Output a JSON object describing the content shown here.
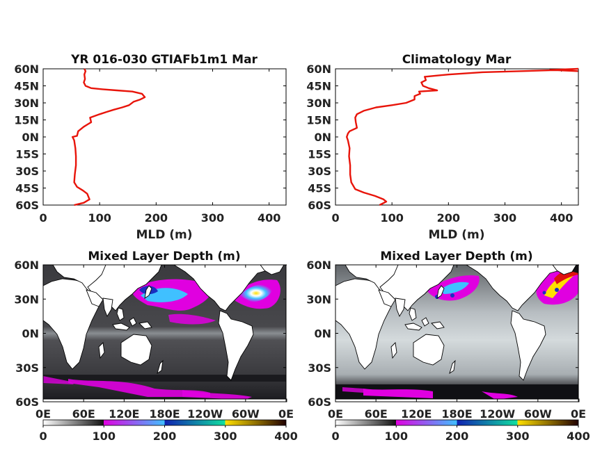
{
  "chart_data": [
    {
      "type": "line",
      "title": "YR 016-030 GTIAFb1m1 Mar",
      "xlabel": "MLD (m)",
      "ylabel": "",
      "xlim": [
        0,
        430
      ],
      "ylim": [
        -60,
        60
      ],
      "x_ticks": [
        "0",
        "100",
        "200",
        "300",
        "400"
      ],
      "y_ticks": [
        "60N",
        "45N",
        "30N",
        "15N",
        "0N",
        "15S",
        "30S",
        "45S",
        "60S"
      ],
      "series": [
        {
          "points": [
            [
              55,
              -60
            ],
            [
              72,
              -58
            ],
            [
              82,
              -55
            ],
            [
              78,
              -50
            ],
            [
              70,
              -47
            ],
            [
              60,
              -44
            ],
            [
              55,
              -40
            ],
            [
              56,
              -33
            ],
            [
              58,
              -25
            ],
            [
              58,
              -17
            ],
            [
              57,
              -10
            ],
            [
              55,
              -3
            ],
            [
              52,
              0
            ],
            [
              60,
              1
            ],
            [
              62,
              5
            ],
            [
              72,
              9
            ],
            [
              85,
              13
            ],
            [
              83,
              17
            ],
            [
              100,
              20
            ],
            [
              112,
              22
            ],
            [
              125,
              24
            ],
            [
              140,
              26
            ],
            [
              152,
              28
            ],
            [
              160,
              31
            ],
            [
              172,
              33
            ],
            [
              180,
              35
            ],
            [
              175,
              38
            ],
            [
              158,
              40
            ],
            [
              130,
              41
            ],
            [
              105,
              42
            ],
            [
              85,
              43
            ],
            [
              75,
              45
            ],
            [
              72,
              48
            ],
            [
              74,
              51
            ],
            [
              73,
              55
            ],
            [
              75,
              58
            ],
            [
              73,
              60
            ]
          ]
        }
      ]
    },
    {
      "type": "line",
      "title": "Climatology Mar",
      "xlabel": "MLD (m)",
      "ylabel": "",
      "xlim": [
        0,
        430
      ],
      "ylim": [
        -60,
        60
      ],
      "x_ticks": [
        "0",
        "100",
        "200",
        "300",
        "400"
      ],
      "y_ticks": [
        "60N",
        "45N",
        "30N",
        "15N",
        "0N",
        "15S",
        "30S",
        "45S",
        "60S"
      ],
      "series": [
        {
          "points": [
            [
              78,
              -60
            ],
            [
              90,
              -57
            ],
            [
              85,
              -55
            ],
            [
              70,
              -52
            ],
            [
              50,
              -49
            ],
            [
              35,
              -46
            ],
            [
              28,
              -40
            ],
            [
              26,
              -33
            ],
            [
              26,
              -25
            ],
            [
              24,
              -17
            ],
            [
              25,
              -10
            ],
            [
              22,
              -3
            ],
            [
              20,
              0
            ],
            [
              22,
              3
            ],
            [
              25,
              5
            ],
            [
              38,
              8
            ],
            [
              36,
              13
            ],
            [
              35,
              17
            ],
            [
              38,
              20
            ],
            [
              50,
              23
            ],
            [
              72,
              26
            ],
            [
              100,
              28
            ],
            [
              125,
              30
            ],
            [
              140,
              33
            ],
            [
              140,
              36
            ],
            [
              150,
              38
            ],
            [
              148,
              40
            ],
            [
              180,
              41
            ],
            [
              165,
              43
            ],
            [
              155,
              45
            ],
            [
              152,
              48
            ],
            [
              160,
              50
            ],
            [
              158,
              53
            ],
            [
              200,
              55
            ],
            [
              260,
              57
            ],
            [
              330,
              58
            ],
            [
              400,
              59
            ],
            [
              428,
              58
            ],
            [
              380,
              59
            ],
            [
              430,
              60
            ]
          ]
        }
      ]
    },
    {
      "type": "heatmap",
      "title": "Mixed Layer Depth (m)",
      "x_ticks": [
        "0E",
        "60E",
        "120E",
        "180E",
        "120W",
        "60W",
        "0E"
      ],
      "y_ticks": [
        "60N",
        "30N",
        "0N",
        "30S",
        "60S"
      ],
      "colorbar_ticks": [
        "0",
        "100",
        "200",
        "300",
        "400"
      ],
      "colorbar_range": [
        0,
        400
      ]
    },
    {
      "type": "heatmap",
      "title": "Mixed Layer Depth (m)",
      "x_ticks": [
        "0E",
        "60E",
        "120E",
        "180E",
        "120W",
        "60W",
        "0E"
      ],
      "y_ticks": [
        "60N",
        "30N",
        "0N",
        "30S",
        "60S"
      ],
      "colorbar_ticks": [
        "0",
        "100",
        "200",
        "300",
        "400"
      ],
      "colorbar_range": [
        0,
        400
      ]
    }
  ]
}
